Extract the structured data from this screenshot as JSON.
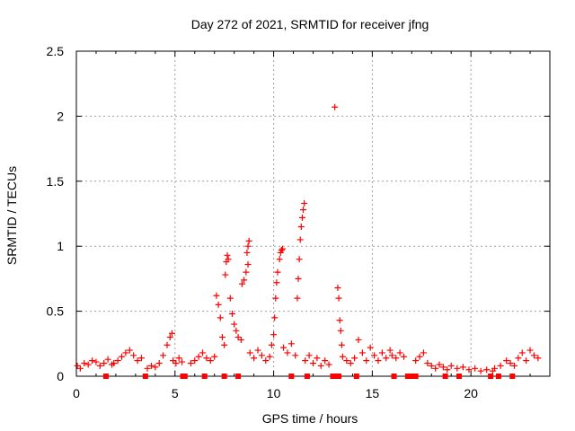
{
  "chart_data": {
    "type": "scatter",
    "title": "Day 272 of 2021, SRMTID for receiver jfng",
    "xlabel": "GPS time / hours",
    "ylabel": "SRMTID / TECUs",
    "xlim": [
      0,
      24
    ],
    "ylim": [
      0,
      2.5
    ],
    "xticks": [
      0,
      5,
      10,
      15,
      20
    ],
    "yticks": [
      0,
      0.5,
      1,
      1.5,
      2,
      2.5
    ],
    "ytick_labels": [
      "0",
      "0.5",
      "1",
      "1.5",
      "2",
      "2.5"
    ],
    "grid": true,
    "legend": "none",
    "marker": "plus",
    "color": "#ff0000",
    "zero_markers": [
      1.5,
      3.5,
      5.4,
      5.5,
      6.5,
      7.5,
      8.2,
      10.9,
      11.7,
      13.0,
      13.1,
      13.2,
      13.3,
      14.2,
      16.1,
      16.8,
      17.0,
      17.2,
      18.7,
      19.4,
      21.0,
      21.4,
      22.1
    ],
    "segments": [
      {
        "x": [
          0.05,
          0.2,
          0.4,
          0.6,
          0.8,
          1.0,
          1.2,
          1.4,
          1.6,
          1.8
        ],
        "y": [
          0.08,
          0.06,
          0.1,
          0.09,
          0.12,
          0.11,
          0.08,
          0.1,
          0.13,
          0.09
        ]
      },
      {
        "x": [
          1.9,
          2.1,
          2.3,
          2.5,
          2.7,
          2.9,
          3.1,
          3.3
        ],
        "y": [
          0.1,
          0.12,
          0.15,
          0.18,
          0.2,
          0.16,
          0.12,
          0.14
        ]
      },
      {
        "x": [
          3.6,
          3.8,
          4.0,
          4.2,
          4.4,
          4.6,
          4.75,
          4.85
        ],
        "y": [
          0.06,
          0.08,
          0.07,
          0.1,
          0.16,
          0.24,
          0.3,
          0.33
        ]
      },
      {
        "x": [
          4.9,
          5.05,
          5.2,
          5.35
        ],
        "y": [
          0.12,
          0.1,
          0.14,
          0.11
        ]
      },
      {
        "x": [
          5.8,
          6.0,
          6.2,
          6.4,
          6.6,
          6.8,
          7.0
        ],
        "y": [
          0.1,
          0.12,
          0.15,
          0.18,
          0.14,
          0.12,
          0.15
        ]
      },
      {
        "x": [
          7.1,
          7.2,
          7.3,
          7.4,
          7.5
        ],
        "y": [
          0.62,
          0.55,
          0.45,
          0.3,
          0.24
        ]
      },
      {
        "x": [
          7.55,
          7.6,
          7.65,
          7.7,
          7.8,
          7.9,
          8.0,
          8.1,
          8.2,
          8.35
        ],
        "y": [
          0.78,
          0.88,
          0.93,
          0.9,
          0.6,
          0.48,
          0.4,
          0.35,
          0.3,
          0.28
        ]
      },
      {
        "x": [
          8.4,
          8.5,
          8.6,
          8.7
        ],
        "y": [
          0.71,
          0.74,
          0.8,
          0.86
        ]
      },
      {
        "x": [
          8.65,
          8.7,
          8.75
        ],
        "y": [
          0.95,
          1.0,
          1.04
        ]
      },
      {
        "x": [
          8.8,
          9.0,
          9.2,
          9.4,
          9.6,
          9.8
        ],
        "y": [
          0.18,
          0.14,
          0.2,
          0.16,
          0.12,
          0.15
        ]
      },
      {
        "x": [
          9.9,
          10.0,
          10.05,
          10.1,
          10.15,
          10.2,
          10.3,
          10.35,
          10.4,
          10.45
        ],
        "y": [
          0.24,
          0.32,
          0.45,
          0.6,
          0.72,
          0.8,
          0.9,
          0.95,
          0.97,
          0.98
        ]
      },
      {
        "x": [
          10.5,
          10.7,
          10.9,
          11.1
        ],
        "y": [
          0.22,
          0.18,
          0.25,
          0.16
        ]
      },
      {
        "x": [
          11.2,
          11.25,
          11.3,
          11.35,
          11.4,
          11.45,
          11.5,
          11.55
        ],
        "y": [
          0.6,
          0.75,
          0.9,
          1.05,
          1.15,
          1.22,
          1.28,
          1.33
        ]
      },
      {
        "x": [
          11.6,
          11.8,
          12.0,
          12.2,
          12.4,
          12.6,
          12.8
        ],
        "y": [
          0.12,
          0.16,
          0.1,
          0.14,
          0.08,
          0.12,
          0.09
        ]
      },
      {
        "x": [
          13.1
        ],
        "y": [
          2.07
        ]
      },
      {
        "x": [
          13.25,
          13.3,
          13.35,
          13.4,
          13.45
        ],
        "y": [
          0.68,
          0.6,
          0.43,
          0.35,
          0.24
        ]
      },
      {
        "x": [
          13.5,
          13.7,
          13.9,
          14.1,
          14.3,
          14.5,
          14.7,
          14.9,
          15.1,
          15.3,
          15.5,
          15.7,
          15.9
        ],
        "y": [
          0.15,
          0.12,
          0.1,
          0.14,
          0.28,
          0.18,
          0.12,
          0.22,
          0.16,
          0.12,
          0.18,
          0.14,
          0.2
        ]
      },
      {
        "x": [
          16.0,
          16.2,
          16.4,
          16.6
        ],
        "y": [
          0.16,
          0.14,
          0.18,
          0.15
        ]
      },
      {
        "x": [
          17.2,
          17.4,
          17.6,
          17.8,
          18.0,
          18.2,
          18.4,
          18.6,
          18.8
        ],
        "y": [
          0.12,
          0.15,
          0.18,
          0.1,
          0.08,
          0.06,
          0.09,
          0.07,
          0.05
        ]
      },
      {
        "x": [
          19.0,
          19.3,
          19.6,
          19.9,
          20.2,
          20.5,
          20.8,
          21.1
        ],
        "y": [
          0.08,
          0.06,
          0.07,
          0.05,
          0.06,
          0.04,
          0.05,
          0.04
        ]
      },
      {
        "x": [
          21.2,
          21.5,
          21.8,
          22.0,
          22.2,
          22.4,
          22.6,
          22.8,
          23.0,
          23.2,
          23.4
        ],
        "y": [
          0.06,
          0.08,
          0.12,
          0.1,
          0.08,
          0.14,
          0.18,
          0.12,
          0.2,
          0.16,
          0.14
        ]
      }
    ]
  }
}
